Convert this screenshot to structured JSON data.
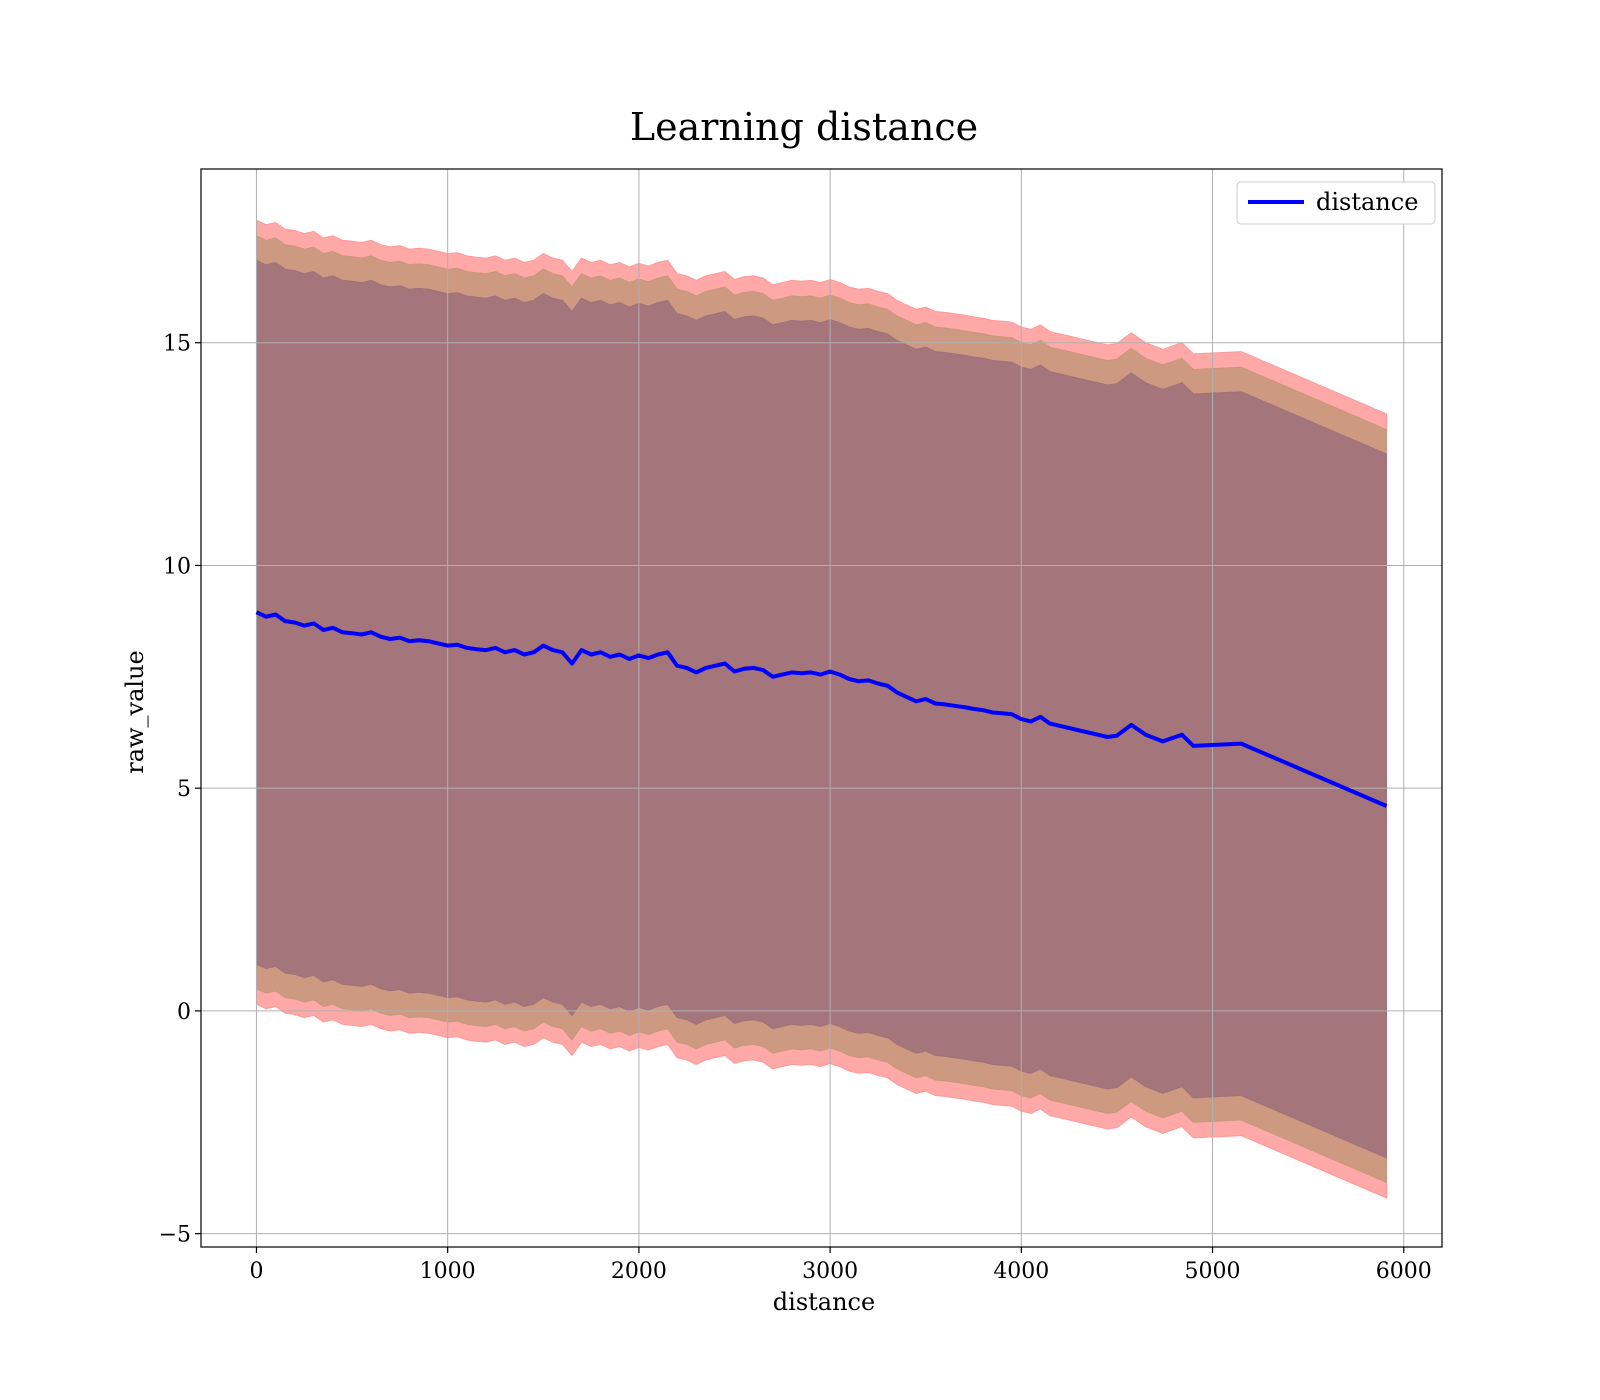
{
  "chart_data": {
    "type": "line",
    "title": "Learning distance",
    "xlabel": "distance",
    "ylabel": "raw_value",
    "xlim": [
      -290,
      6200
    ],
    "ylim": [
      -5.3,
      18.9
    ],
    "xticks": [
      0,
      1000,
      2000,
      3000,
      4000,
      5000,
      6000
    ],
    "yticks": [
      -5,
      0,
      5,
      10,
      15
    ],
    "xtick_labels": [
      "0",
      "1000",
      "2000",
      "3000",
      "4000",
      "5000",
      "6000"
    ],
    "ytick_labels": [
      "−5",
      "0",
      "5",
      "10",
      "15"
    ],
    "grid": true,
    "legend": {
      "placement": "top-right",
      "entries": [
        {
          "label": "distance",
          "color": "#0000ff"
        }
      ]
    },
    "colors": {
      "line": "#0000ff",
      "band_outer": "#ff9999",
      "band_middle": "#c8977b",
      "band_inner": "#a0717a"
    },
    "series": [
      {
        "name": "distance",
        "x": [
          0,
          50,
          100,
          150,
          200,
          250,
          300,
          350,
          400,
          450,
          500,
          550,
          600,
          650,
          700,
          750,
          800,
          850,
          900,
          950,
          1000,
          1050,
          1100,
          1150,
          1200,
          1250,
          1300,
          1350,
          1400,
          1450,
          1500,
          1550,
          1600,
          1650,
          1700,
          1750,
          1800,
          1850,
          1900,
          1950,
          2000,
          2050,
          2100,
          2150,
          2200,
          2250,
          2300,
          2350,
          2400,
          2450,
          2500,
          2550,
          2600,
          2650,
          2700,
          2750,
          2800,
          2850,
          2900,
          2950,
          3000,
          3050,
          3100,
          3150,
          3200,
          3250,
          3300,
          3350,
          3400,
          3450,
          3500,
          3550,
          3600,
          3650,
          3700,
          3750,
          3800,
          3850,
          3900,
          3950,
          4000,
          4050,
          4100,
          4150,
          4200,
          4250,
          4300,
          4350,
          4400,
          4450,
          4500,
          4575,
          4650,
          4740,
          4840,
          4900,
          5150,
          5910
        ],
        "y": [
          8.95,
          8.85,
          8.9,
          8.75,
          8.72,
          8.65,
          8.7,
          8.55,
          8.6,
          8.5,
          8.48,
          8.45,
          8.5,
          8.4,
          8.35,
          8.38,
          8.3,
          8.32,
          8.3,
          8.25,
          8.2,
          8.22,
          8.15,
          8.12,
          8.1,
          8.15,
          8.05,
          8.1,
          8.0,
          8.05,
          8.2,
          8.1,
          8.05,
          7.8,
          8.1,
          8.0,
          8.05,
          7.95,
          8.0,
          7.9,
          7.98,
          7.92,
          8.0,
          8.05,
          7.75,
          7.7,
          7.6,
          7.7,
          7.75,
          7.8,
          7.62,
          7.68,
          7.7,
          7.65,
          7.5,
          7.55,
          7.6,
          7.58,
          7.6,
          7.55,
          7.62,
          7.55,
          7.45,
          7.4,
          7.42,
          7.35,
          7.3,
          7.15,
          7.05,
          6.95,
          7.0,
          6.9,
          6.88,
          6.85,
          6.82,
          6.78,
          6.75,
          6.7,
          6.68,
          6.66,
          6.55,
          6.5,
          6.6,
          6.45,
          6.4,
          6.35,
          6.3,
          6.25,
          6.2,
          6.15,
          6.18,
          6.42,
          6.2,
          6.05,
          6.2,
          5.95,
          6.0,
          4.6
        ],
        "bands": [
          {
            "name": "outer",
            "plus": 8.8,
            "minus": 8.8
          },
          {
            "name": "middle",
            "plus": 8.45,
            "minus": 8.45
          },
          {
            "name": "inner",
            "plus": 7.9,
            "minus": 7.9
          }
        ]
      }
    ]
  }
}
